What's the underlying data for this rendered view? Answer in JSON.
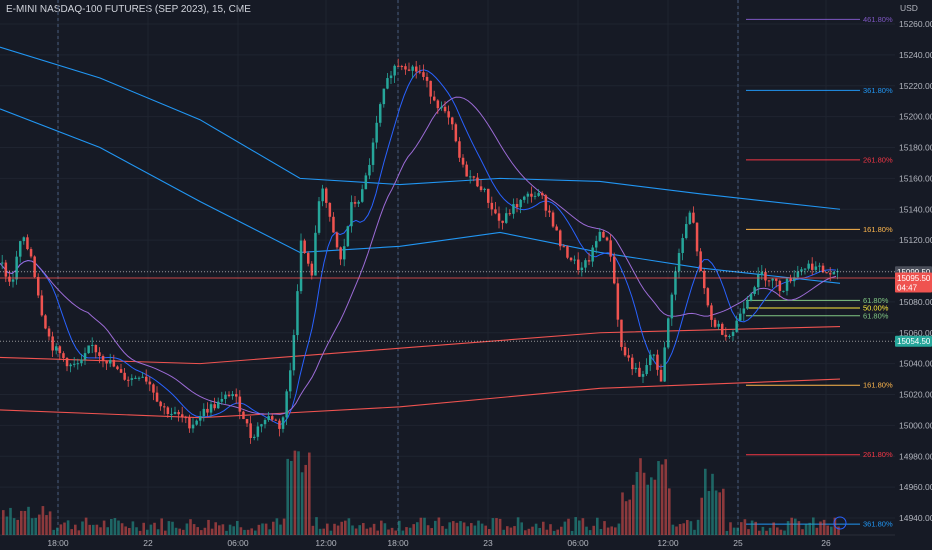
{
  "header": {
    "title": "E-MINI NASDAQ-100 FUTURES (SEP 2023), 15, CME"
  },
  "axis": {
    "currency": "USD"
  },
  "colors": {
    "up": "#26a69a",
    "down": "#ef5350",
    "bg": "#161a25",
    "grid": "#1f2430"
  },
  "chart_data": {
    "type": "candlestick",
    "title": "E-MINI NASDAQ-100 FUTURES (SEP 2023), 15, CME",
    "ylim": [
      14930,
      15270
    ],
    "y_ticks": [
      "15260.00",
      "15240.00",
      "15220.00",
      "15200.00",
      "15180.00",
      "15160.00",
      "15140.00",
      "15120.00",
      "15100.00",
      "15080.00",
      "15060.00",
      "15040.00",
      "15020.00",
      "15000.00",
      "14980.00",
      "14960.00",
      "14940.00"
    ],
    "x_ticks": [
      "18:00",
      "22",
      "06:00",
      "12:00",
      "18:00",
      "23",
      "06:00",
      "12:00",
      "25",
      "26"
    ],
    "price_labels": [
      {
        "value": 15099.5,
        "text": "15099.50",
        "color": "#1e222d",
        "bg": "#4a4e5a"
      },
      {
        "value": 15095.5,
        "text": "15095.50",
        "sub": "04:47",
        "bg": "#ef5350"
      },
      {
        "value": 15054.5,
        "text": "15054.50",
        "bg": "#26a69a"
      }
    ],
    "fib_levels": [
      {
        "label": "461.80%",
        "value": 15263,
        "color": "#7e57c2"
      },
      {
        "label": "361.80%",
        "value": 15217,
        "color": "#2196f3"
      },
      {
        "label": "261.80%",
        "value": 15172,
        "color": "#f23645"
      },
      {
        "label": "161.80%",
        "value": 15127,
        "color": "#ffb74d"
      },
      {
        "label": "61.80%",
        "value": 15081,
        "color": "#81c784"
      },
      {
        "label": "50.00%",
        "value": 15076,
        "color": "#ffeb3b"
      },
      {
        "label": "61.80%",
        "value": 15071,
        "color": "#81c784"
      },
      {
        "label": "161.80%",
        "value": 15026,
        "color": "#ffb74d"
      },
      {
        "label": "261.80%",
        "value": 14981,
        "color": "#f23645"
      },
      {
        "label": "361.80%",
        "value": 14936,
        "color": "#2196f3"
      }
    ],
    "close_path": [
      [
        0,
        15105
      ],
      [
        10,
        15090
      ],
      [
        20,
        15122
      ],
      [
        30,
        15110
      ],
      [
        40,
        15075
      ],
      [
        50,
        15052
      ],
      [
        60,
        15045
      ],
      [
        70,
        15038
      ],
      [
        80,
        15040
      ],
      [
        90,
        15052
      ],
      [
        100,
        15045
      ],
      [
        110,
        15040
      ],
      [
        120,
        15032
      ],
      [
        130,
        15030
      ],
      [
        140,
        15034
      ],
      [
        150,
        15026
      ],
      [
        160,
        15012
      ],
      [
        170,
        15008
      ],
      [
        180,
        15005
      ],
      [
        190,
        15000
      ],
      [
        200,
        15008
      ],
      [
        210,
        15012
      ],
      [
        220,
        15015
      ],
      [
        230,
        15022
      ],
      [
        240,
        15010
      ],
      [
        250,
        14992
      ],
      [
        260,
        15002
      ],
      [
        270,
        15006
      ],
      [
        280,
        14998
      ],
      [
        290,
        15040
      ],
      [
        295,
        15080
      ],
      [
        300,
        15120
      ],
      [
        310,
        15095
      ],
      [
        320,
        15160
      ],
      [
        330,
        15128
      ],
      [
        340,
        15105
      ],
      [
        350,
        15142
      ],
      [
        360,
        15148
      ],
      [
        370,
        15175
      ],
      [
        380,
        15210
      ],
      [
        390,
        15230
      ],
      [
        398,
        15235
      ],
      [
        410,
        15232
      ],
      [
        420,
        15228
      ],
      [
        430,
        15215
      ],
      [
        440,
        15205
      ],
      [
        450,
        15195
      ],
      [
        460,
        15168
      ],
      [
        470,
        15160
      ],
      [
        480,
        15155
      ],
      [
        490,
        15142
      ],
      [
        500,
        15130
      ],
      [
        510,
        15140
      ],
      [
        520,
        15145
      ],
      [
        530,
        15150
      ],
      [
        540,
        15148
      ],
      [
        550,
        15135
      ],
      [
        560,
        15115
      ],
      [
        570,
        15108
      ],
      [
        580,
        15100
      ],
      [
        590,
        15110
      ],
      [
        600,
        15128
      ],
      [
        610,
        15110
      ],
      [
        620,
        15050
      ],
      [
        630,
        15040
      ],
      [
        640,
        15028
      ],
      [
        650,
        15048
      ],
      [
        660,
        15030
      ],
      [
        670,
        15085
      ],
      [
        680,
        15118
      ],
      [
        690,
        15140
      ],
      [
        700,
        15095
      ],
      [
        710,
        15068
      ],
      [
        720,
        15062
      ],
      [
        730,
        15058
      ],
      [
        740,
        15075
      ],
      [
        750,
        15088
      ],
      [
        760,
        15098
      ],
      [
        770,
        15095
      ],
      [
        780,
        15088
      ],
      [
        790,
        15096
      ],
      [
        800,
        15102
      ],
      [
        810,
        15104
      ],
      [
        820,
        15100
      ],
      [
        835,
        15097
      ]
    ],
    "ma_lines": [
      {
        "color": "#2196f3",
        "points": [
          [
            0,
            15245
          ],
          [
            100,
            15225
          ],
          [
            200,
            15198
          ],
          [
            300,
            15160
          ],
          [
            400,
            15156
          ],
          [
            500,
            15160
          ],
          [
            600,
            15158
          ],
          [
            700,
            15150
          ],
          [
            840,
            15140
          ]
        ]
      },
      {
        "color": "#2196f3",
        "points": [
          [
            0,
            15205
          ],
          [
            100,
            15180
          ],
          [
            200,
            15145
          ],
          [
            300,
            15112
          ],
          [
            400,
            15116
          ],
          [
            500,
            15125
          ],
          [
            600,
            15112
          ],
          [
            700,
            15102
          ],
          [
            840,
            15092
          ]
        ]
      },
      {
        "color": "#ef5350",
        "points": [
          [
            0,
            15044
          ],
          [
            200,
            15040
          ],
          [
            400,
            15050
          ],
          [
            600,
            15060
          ],
          [
            840,
            15064
          ]
        ]
      },
      {
        "color": "#ef5350",
        "points": [
          [
            0,
            15010
          ],
          [
            200,
            15005
          ],
          [
            400,
            15012
          ],
          [
            600,
            15024
          ],
          [
            840,
            15030
          ]
        ]
      }
    ]
  }
}
